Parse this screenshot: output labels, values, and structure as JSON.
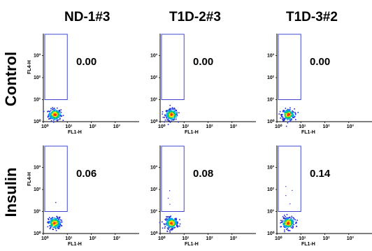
{
  "columns": [
    "ND-1#3",
    "T1D-2#3",
    "T1D-3#2"
  ],
  "rows": [
    "Control",
    "Insulin"
  ],
  "chart_data": {
    "type": "scatter",
    "panels": [
      {
        "row": "Control",
        "column": "ND-1#3",
        "gate_value": "0.00"
      },
      {
        "row": "Control",
        "column": "T1D-2#3",
        "gate_value": "0.00"
      },
      {
        "row": "Control",
        "column": "T1D-3#2",
        "gate_value": "0.00"
      },
      {
        "row": "Insulin",
        "column": "ND-1#3",
        "gate_value": "0.06"
      },
      {
        "row": "Insulin",
        "column": "T1D-2#3",
        "gate_value": "0.08"
      },
      {
        "row": "Insulin",
        "column": "T1D-3#2",
        "gate_value": "0.14"
      }
    ],
    "xlabel": "FL1-H",
    "ylabel": "FL4-H",
    "x_scale": "log",
    "y_scale": "log",
    "xlim": [
      1,
      10000
    ],
    "ylim": [
      1,
      10000
    ],
    "x_ticks": [
      "10⁰",
      "10¹",
      "10²",
      "10³"
    ],
    "y_ticks": [
      "10⁰",
      "10¹",
      "10²",
      "10³"
    ],
    "gate": {
      "x_range": [
        1,
        10
      ],
      "y_range": [
        10,
        10000
      ]
    },
    "colors": {
      "gate": "#3f48cc",
      "density": [
        "#1f2bd6",
        "#00a0ff",
        "#00d060",
        "#ffe000",
        "#ff3000"
      ]
    }
  }
}
